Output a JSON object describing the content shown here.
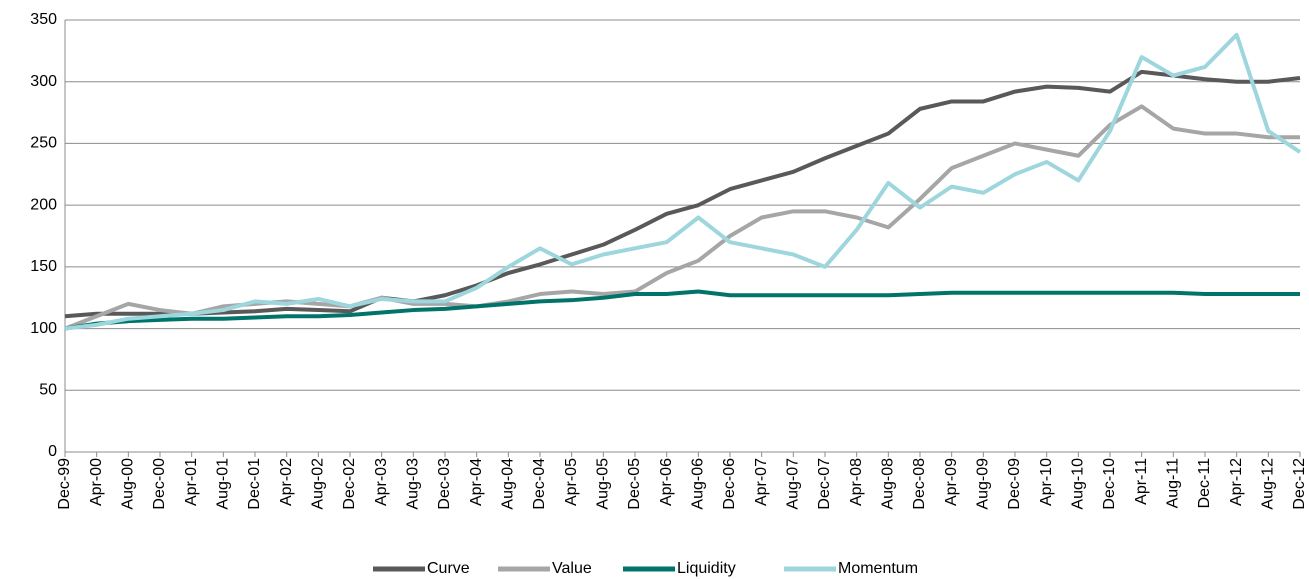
{
  "chart_data": {
    "type": "line",
    "categories": [
      "Dec-99",
      "Apr-00",
      "Aug-00",
      "Dec-00",
      "Apr-01",
      "Aug-01",
      "Dec-01",
      "Apr-02",
      "Aug-02",
      "Dec-02",
      "Apr-03",
      "Aug-03",
      "Dec-03",
      "Apr-04",
      "Aug-04",
      "Dec-04",
      "Apr-05",
      "Aug-05",
      "Dec-05",
      "Apr-06",
      "Aug-06",
      "Dec-06",
      "Apr-07",
      "Aug-07",
      "Dec-07",
      "Apr-08",
      "Aug-08",
      "Dec-08",
      "Apr-09",
      "Aug-09",
      "Dec-09",
      "Apr-10",
      "Aug-10",
      "Dec-10",
      "Apr-11",
      "Aug-11",
      "Dec-11",
      "Apr-12",
      "Aug-12",
      "Dec-12"
    ],
    "series": [
      {
        "name": "Curve",
        "color": "#595959",
        "values": [
          110,
          112,
          112,
          112,
          112,
          113,
          114,
          116,
          115,
          114,
          125,
          122,
          127,
          135,
          145,
          152,
          160,
          168,
          180,
          193,
          200,
          213,
          220,
          227,
          238,
          248,
          258,
          278,
          284,
          284,
          292,
          296,
          295,
          292,
          308,
          305,
          302,
          300,
          300,
          303
        ]
      },
      {
        "name": "Value",
        "color": "#a6a6a6",
        "values": [
          100,
          110,
          120,
          115,
          112,
          118,
          120,
          122,
          120,
          118,
          125,
          120,
          120,
          118,
          122,
          128,
          130,
          128,
          130,
          145,
          155,
          175,
          190,
          195,
          195,
          190,
          182,
          205,
          230,
          240,
          250,
          245,
          240,
          265,
          280,
          262,
          258,
          258,
          255,
          255
        ]
      },
      {
        "name": "Liquidity",
        "color": "#00736a",
        "values": [
          100,
          104,
          106,
          107,
          108,
          108,
          109,
          110,
          110,
          111,
          113,
          115,
          116,
          118,
          120,
          122,
          123,
          125,
          128,
          128,
          130,
          127,
          127,
          127,
          127,
          127,
          127,
          128,
          129,
          129,
          129,
          129,
          129,
          129,
          129,
          129,
          128,
          128,
          128,
          128
        ]
      },
      {
        "name": "Momentum",
        "color": "#9dd6dc",
        "values": [
          100,
          103,
          108,
          110,
          112,
          115,
          122,
          120,
          124,
          118,
          124,
          122,
          122,
          133,
          150,
          165,
          152,
          160,
          165,
          170,
          190,
          170,
          165,
          160,
          150,
          180,
          218,
          198,
          215,
          210,
          225,
          235,
          220,
          260,
          320,
          305,
          312,
          338,
          260,
          243
        ]
      }
    ],
    "ylim": [
      0,
      350
    ],
    "yticks": [
      0,
      50,
      100,
      150,
      200,
      250,
      300,
      350
    ],
    "grid": true,
    "legend": "bottom"
  }
}
